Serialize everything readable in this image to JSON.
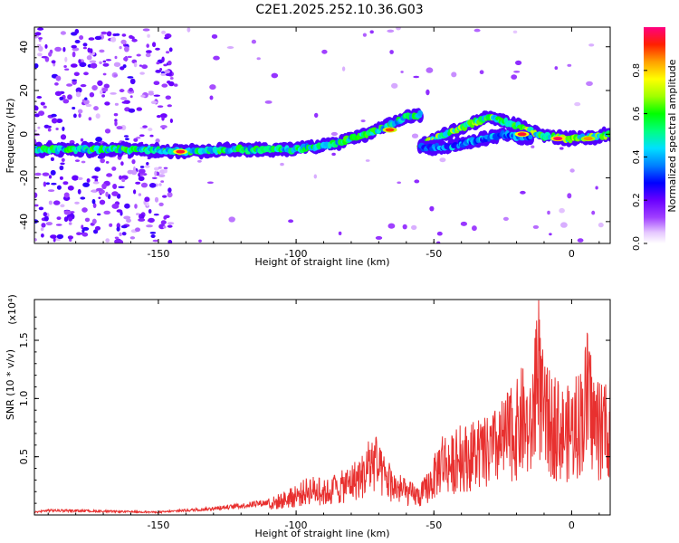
{
  "figure": {
    "title": "C2E1.2025.252.10.36.G03"
  },
  "chart_data": [
    {
      "type": "heatmap",
      "xlabel": "Height of straight line (km)",
      "ylabel": "Frequency (Hz)",
      "xlim": [
        -195,
        14
      ],
      "ylim": [
        -50,
        49
      ],
      "x_ticks": [
        -150,
        -100,
        -50,
        0
      ],
      "y_ticks": [
        -40,
        -20,
        0,
        20,
        40
      ],
      "x_tick_labels": [
        "-150",
        "-100",
        "-50",
        "0"
      ],
      "y_tick_labels": [
        "-40",
        "-20",
        "0",
        "20",
        "40"
      ],
      "colorbar": {
        "label": "Normalized spectral amplitude",
        "range": [
          0,
          1
        ],
        "ticks": [
          0,
          0.2,
          0.4,
          0.6,
          0.8
        ],
        "tick_labels": [
          "0.0",
          "0.2",
          "0.4",
          "0.6",
          "0.8"
        ]
      },
      "ridges": [
        {
          "points": [
            [
              -195,
              -7
            ],
            [
              -160,
              -7
            ],
            [
              -140,
              -8
            ],
            [
              -120,
              -7
            ],
            [
              -100,
              -7
            ],
            [
              -85,
              -4
            ],
            [
              -70,
              2
            ],
            [
              -60,
              8
            ],
            [
              -55,
              9
            ]
          ],
          "peak": 0.75
        },
        {
          "points": [
            [
              -55,
              -5
            ],
            [
              -40,
              3
            ],
            [
              -30,
              8
            ],
            [
              -20,
              4
            ],
            [
              -10,
              -1
            ],
            [
              0,
              -2
            ],
            [
              10,
              -1
            ],
            [
              14,
              0
            ]
          ],
          "peak": 0.85
        },
        {
          "points": [
            [
              -55,
              -6
            ],
            [
              -45,
              -6
            ],
            [
              -35,
              -3
            ],
            [
              -25,
              0
            ],
            [
              -15,
              -2
            ]
          ],
          "peak": 0.55
        }
      ],
      "hotspots": [
        {
          "x": -142,
          "y": -8,
          "value": 0.95
        },
        {
          "x": -66,
          "y": 2,
          "value": 0.9
        },
        {
          "x": -18,
          "y": 0,
          "value": 0.95
        },
        {
          "x": -5,
          "y": -2,
          "value": 0.98
        },
        {
          "x": 6,
          "y": -2,
          "value": 0.85
        }
      ],
      "noise_region": {
        "x_range": [
          -195,
          -145
        ],
        "value_range": [
          0.05,
          0.25
        ]
      }
    },
    {
      "type": "line",
      "xlabel": "Height of straight line (km)",
      "ylabel": "SNR (10 * v/v)",
      "y_scale_label": "(x10⁴)",
      "xlim": [
        -195,
        14
      ],
      "ylim": [
        0,
        1.85
      ],
      "x_ticks": [
        -150,
        -100,
        -50,
        0
      ],
      "y_ticks": [
        0.5,
        1.0,
        1.5
      ],
      "x_tick_labels": [
        "-150",
        "-100",
        "-50",
        "0"
      ],
      "y_tick_labels": [
        "0.5",
        "1.0",
        "1.5"
      ],
      "series": [
        {
          "color": "#e8302f",
          "envelope": [
            [
              -195,
              0.03
            ],
            [
              -190,
              0.05
            ],
            [
              -170,
              0.04
            ],
            [
              -150,
              0.03
            ],
            [
              -140,
              0.05
            ],
            [
              -130,
              0.07
            ],
            [
              -120,
              0.1
            ],
            [
              -110,
              0.14
            ],
            [
              -105,
              0.2
            ],
            [
              -100,
              0.25
            ],
            [
              -95,
              0.35
            ],
            [
              -90,
              0.3
            ],
            [
              -85,
              0.35
            ],
            [
              -80,
              0.45
            ],
            [
              -75,
              0.55
            ],
            [
              -72,
              0.75
            ],
            [
              -70,
              0.6
            ],
            [
              -65,
              0.4
            ],
            [
              -60,
              0.3
            ],
            [
              -55,
              0.25
            ],
            [
              -50,
              0.5
            ],
            [
              -47,
              0.75
            ],
            [
              -44,
              0.68
            ],
            [
              -40,
              0.78
            ],
            [
              -35,
              0.8
            ],
            [
              -30,
              0.85
            ],
            [
              -25,
              1.0
            ],
            [
              -20,
              1.15
            ],
            [
              -18,
              1.3
            ],
            [
              -15,
              1.1
            ],
            [
              -12,
              1.85
            ],
            [
              -10,
              1.3
            ],
            [
              -5,
              1.15
            ],
            [
              -2,
              1.1
            ],
            [
              2,
              1.2
            ],
            [
              6,
              1.6
            ],
            [
              9,
              1.15
            ],
            [
              12,
              1.1
            ],
            [
              14,
              1.22
            ]
          ]
        }
      ]
    }
  ]
}
